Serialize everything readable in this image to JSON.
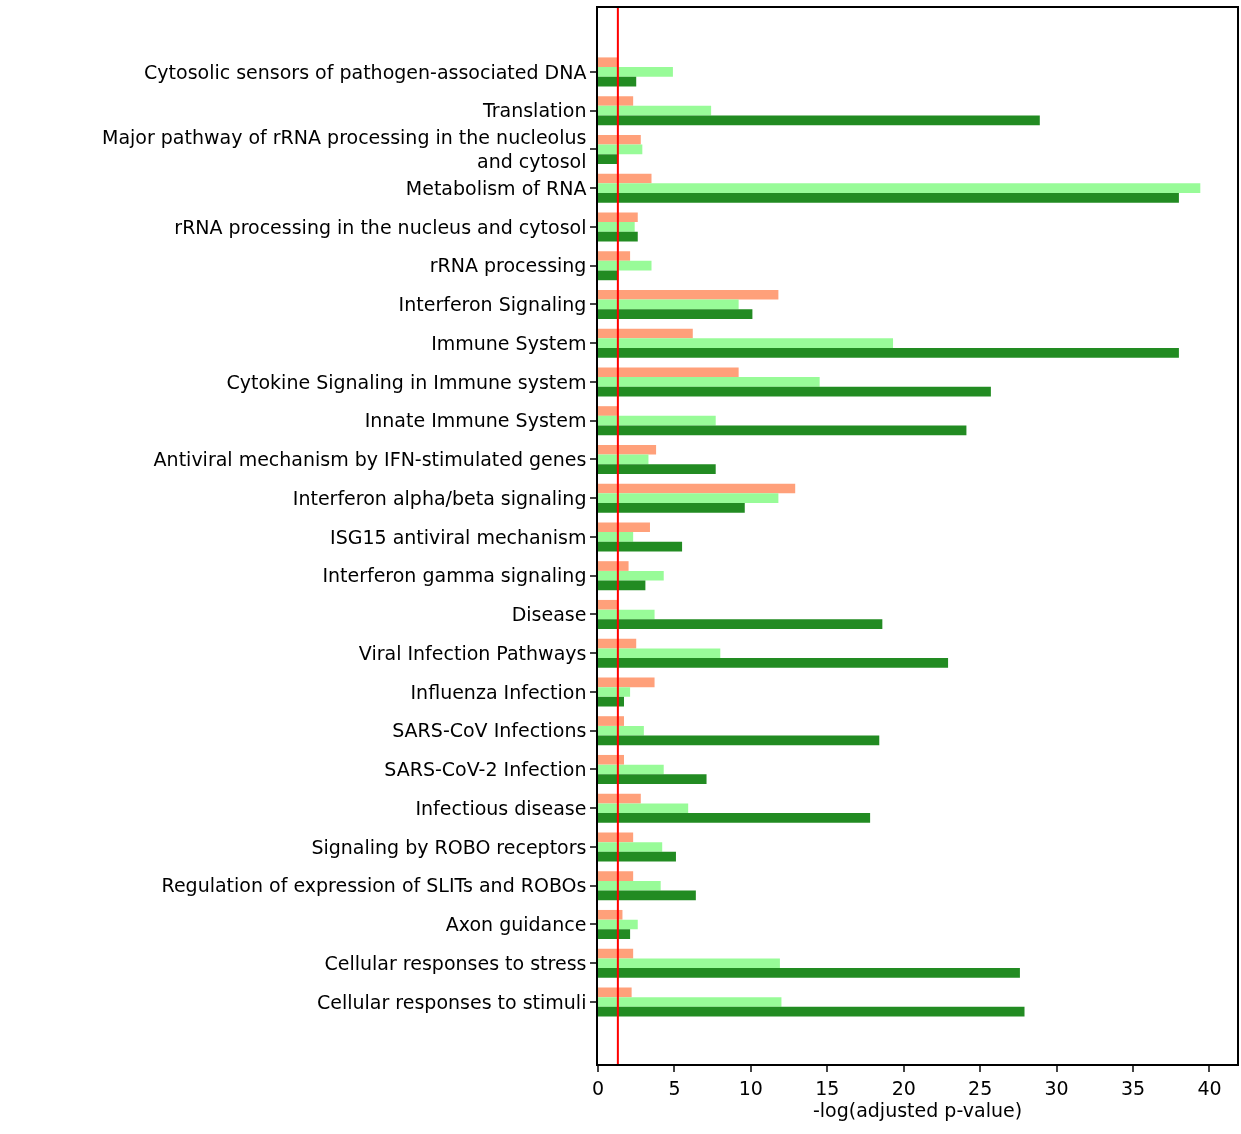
{
  "chart_data": {
    "type": "bar",
    "orientation": "horizontal",
    "xlabel": "-log(adjusted p-value)",
    "categories": [
      "Cytosolic sensors of pathogen-associated DNA",
      "Translation",
      "Major pathway of rRNA processing in the nucleolus and cytosol",
      "Metabolism of RNA",
      "rRNA processing in the nucleus and cytosol",
      "rRNA processing",
      "Interferon Signaling",
      "Immune System",
      "Cytokine Signaling in Immune system",
      "Innate Immune System",
      "Antiviral mechanism by IFN-stimulated genes",
      "Interferon alpha/beta signaling",
      "ISG15 antiviral mechanism",
      "Interferon gamma signaling",
      "Disease",
      "Viral Infection Pathways",
      "Influenza Infection",
      "SARS-CoV Infections",
      "SARS-CoV-2 Infection",
      "Infectious disease",
      "Signaling by ROBO receptors",
      "Regulation of expression of SLITs and ROBOs",
      "Axon guidance",
      "Cellular responses to stress",
      "Cellular responses to stimuli"
    ],
    "series": [
      {
        "color": "#ffa07a",
        "values": [
          1.3,
          2.3,
          2.8,
          3.5,
          2.6,
          2.1,
          11.8,
          6.2,
          9.2,
          1.3,
          3.8,
          12.9,
          3.4,
          2.0,
          1.3,
          2.5,
          3.7,
          1.7,
          1.7,
          2.8,
          2.3,
          2.3,
          1.6,
          2.3,
          2.2
        ]
      },
      {
        "color": "#98fb98",
        "values": [
          4.9,
          7.4,
          2.9,
          39.4,
          2.4,
          3.5,
          9.2,
          19.3,
          14.5,
          7.7,
          3.3,
          11.8,
          2.3,
          4.3,
          3.7,
          8.0,
          2.1,
          3.0,
          4.3,
          5.9,
          4.2,
          4.1,
          2.6,
          11.9,
          12.0
        ]
      },
      {
        "color": "#228b22",
        "values": [
          2.5,
          28.9,
          1.3,
          38.0,
          2.6,
          1.3,
          10.1,
          38.0,
          25.7,
          24.1,
          7.7,
          9.6,
          5.5,
          3.1,
          18.6,
          22.9,
          1.7,
          18.4,
          7.1,
          17.8,
          5.1,
          6.4,
          2.1,
          27.6,
          27.9
        ]
      }
    ],
    "xlim": [
      0,
      41.8
    ],
    "xticks": [
      0,
      5,
      10,
      15,
      20,
      25,
      30,
      35,
      40
    ],
    "ref_lines": [
      {
        "axis": "x",
        "value": 1.3,
        "color": "#ff0000",
        "line_style": "solid"
      }
    ]
  }
}
